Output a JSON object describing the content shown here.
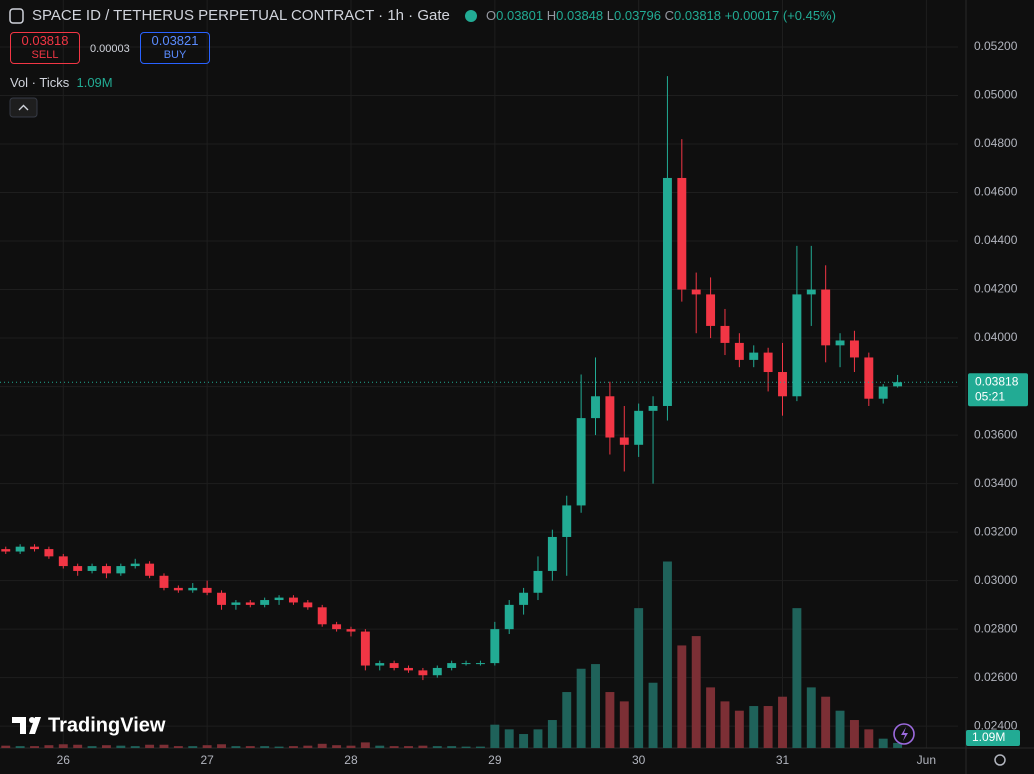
{
  "chart_data": {
    "type": "candlestick",
    "title": "SPACE ID / TETHERUS PERPETUAL CONTRACT · 1h · Gate",
    "ohlc_labels": [
      "O",
      "H",
      "L",
      "C"
    ],
    "change": "+0.00017 (+0.45%)",
    "sell": {
      "price": 0.03818,
      "label": "SELL"
    },
    "spread": 3e-05,
    "buy": {
      "price": 0.03821,
      "label": "BUY"
    },
    "volume_legend": "Vol · Ticks",
    "volume_label": "1.09M",
    "countdown": "05:21",
    "watermark": "TradingView",
    "up_color": "#22ab94",
    "down_color": "#f23645",
    "volume_up_color": "#1f625a",
    "volume_down_color": "#7c2f35",
    "grid": true,
    "x": [
      25.6,
      25.7,
      25.8,
      25.9,
      26.0,
      26.1,
      26.2,
      26.3,
      26.4,
      26.5,
      26.6,
      26.7,
      26.8,
      26.9,
      27.0,
      27.1,
      27.2,
      27.3,
      27.4,
      27.5,
      27.6,
      27.7,
      27.8,
      27.9,
      28.0,
      28.1,
      28.2,
      28.3,
      28.4,
      28.5,
      28.6,
      28.7,
      28.8,
      28.9,
      29.0,
      29.1,
      29.2,
      29.3,
      29.4,
      29.5,
      29.6,
      29.7,
      29.8,
      29.9,
      30.0,
      30.1,
      30.2,
      30.3,
      30.4,
      30.5,
      30.6,
      30.7,
      30.8,
      30.9,
      31.0,
      31.1,
      31.2,
      31.3,
      31.4,
      31.5,
      31.6,
      31.7,
      31.8
    ],
    "open": [
      0.0313,
      0.0312,
      0.0314,
      0.0313,
      0.031,
      0.0306,
      0.0304,
      0.0306,
      0.0303,
      0.0306,
      0.0307,
      0.0302,
      0.0297,
      0.0296,
      0.0297,
      0.0295,
      0.029,
      0.0291,
      0.029,
      0.0292,
      0.0293,
      0.0291,
      0.0289,
      0.0282,
      0.028,
      0.0279,
      0.0265,
      0.0266,
      0.0264,
      0.0263,
      0.0261,
      0.0264,
      0.0266,
      0.0266,
      0.0266,
      0.028,
      0.029,
      0.0295,
      0.0304,
      0.0318,
      0.0331,
      0.0367,
      0.0376,
      0.0359,
      0.0356,
      0.037,
      0.0372,
      0.0466,
      0.042,
      0.0418,
      0.0405,
      0.0398,
      0.0391,
      0.0394,
      0.0386,
      0.0376,
      0.0418,
      0.042,
      0.0397,
      0.0399,
      0.0392,
      0.0375,
      0.03801
    ],
    "high": [
      0.0314,
      0.0315,
      0.0315,
      0.0314,
      0.0311,
      0.0307,
      0.0307,
      0.0307,
      0.0307,
      0.0309,
      0.0308,
      0.0303,
      0.0298,
      0.0299,
      0.03,
      0.0296,
      0.0292,
      0.0292,
      0.0293,
      0.0294,
      0.0294,
      0.0292,
      0.029,
      0.0283,
      0.0281,
      0.028,
      0.0267,
      0.0267,
      0.0265,
      0.0264,
      0.0265,
      0.0267,
      0.0267,
      0.0267,
      0.0283,
      0.0292,
      0.0297,
      0.031,
      0.0321,
      0.0335,
      0.0385,
      0.0392,
      0.0382,
      0.0372,
      0.0373,
      0.0376,
      0.0508,
      0.0482,
      0.0427,
      0.0425,
      0.0412,
      0.0402,
      0.0397,
      0.0396,
      0.0398,
      0.0438,
      0.0438,
      0.043,
      0.0402,
      0.0403,
      0.0394,
      0.0381,
      0.03848
    ],
    "low": [
      0.0311,
      0.0311,
      0.0312,
      0.0309,
      0.0305,
      0.0302,
      0.0303,
      0.0301,
      0.0302,
      0.0305,
      0.0301,
      0.0296,
      0.0295,
      0.0295,
      0.0294,
      0.0288,
      0.0288,
      0.0289,
      0.0289,
      0.029,
      0.029,
      0.0288,
      0.0281,
      0.0279,
      0.0277,
      0.0263,
      0.0263,
      0.0263,
      0.0262,
      0.0259,
      0.026,
      0.0263,
      0.0265,
      0.0265,
      0.0265,
      0.0278,
      0.0286,
      0.0292,
      0.03,
      0.0302,
      0.0328,
      0.036,
      0.0352,
      0.0345,
      0.0351,
      0.034,
      0.0366,
      0.0415,
      0.0402,
      0.04,
      0.0393,
      0.0388,
      0.0388,
      0.0378,
      0.0368,
      0.0374,
      0.0405,
      0.039,
      0.0388,
      0.0386,
      0.0372,
      0.0373,
      0.03796
    ],
    "close": [
      0.0312,
      0.0314,
      0.0313,
      0.031,
      0.0306,
      0.0304,
      0.0306,
      0.0303,
      0.0306,
      0.0307,
      0.0302,
      0.0297,
      0.0296,
      0.0297,
      0.0295,
      0.029,
      0.0291,
      0.029,
      0.0292,
      0.0293,
      0.0291,
      0.0289,
      0.0282,
      0.028,
      0.0279,
      0.0265,
      0.0266,
      0.0264,
      0.0263,
      0.0261,
      0.0264,
      0.0266,
      0.0266,
      0.0266,
      0.028,
      0.029,
      0.0295,
      0.0304,
      0.0318,
      0.0331,
      0.0367,
      0.0376,
      0.0359,
      0.0356,
      0.037,
      0.0372,
      0.0466,
      0.042,
      0.0418,
      0.0405,
      0.0398,
      0.0391,
      0.0394,
      0.0386,
      0.0376,
      0.0418,
      0.042,
      0.0397,
      0.0399,
      0.0392,
      0.0375,
      0.038,
      0.03818
    ],
    "volume": [
      0.5,
      0.4,
      0.4,
      0.6,
      0.8,
      0.7,
      0.4,
      0.6,
      0.5,
      0.4,
      0.7,
      0.7,
      0.4,
      0.4,
      0.6,
      0.8,
      0.4,
      0.4,
      0.4,
      0.3,
      0.4,
      0.5,
      0.9,
      0.6,
      0.5,
      1.2,
      0.5,
      0.4,
      0.4,
      0.5,
      0.4,
      0.4,
      0.3,
      0.3,
      5,
      4,
      3,
      4,
      6,
      12,
      17,
      18,
      12,
      10,
      30,
      14,
      40,
      22,
      24,
      13,
      10,
      8,
      9,
      9,
      11,
      30,
      13,
      11,
      8,
      6,
      4,
      2,
      1.09
    ],
    "xlim": [
      25.56,
      32.22
    ],
    "xticks": [
      26,
      27,
      28,
      29,
      30,
      31,
      {
        "value": 32,
        "label": "Jun"
      }
    ],
    "ylim": [
      0.0231,
      0.0527
    ],
    "yticks": [
      {
        "value": 0.024,
        "label": "0.02400"
      },
      {
        "value": 0.026,
        "label": "0.02600"
      },
      {
        "value": 0.028,
        "label": "0.02800"
      },
      {
        "value": 0.03,
        "label": "0.03000"
      },
      {
        "value": 0.032,
        "label": "0.03200"
      },
      {
        "value": 0.034,
        "label": "0.03400"
      },
      {
        "value": 0.036,
        "label": "0.03600"
      },
      {
        "value": 0.038,
        "label": "0.03800"
      },
      {
        "value": 0.04,
        "label": "0.04000"
      },
      {
        "value": 0.042,
        "label": "0.04200"
      },
      {
        "value": 0.044,
        "label": "0.04400"
      },
      {
        "value": 0.046,
        "label": "0.04600"
      },
      {
        "value": 0.048,
        "label": "0.04800"
      },
      {
        "value": 0.05,
        "label": "0.05000"
      },
      {
        "value": 0.052,
        "label": "0.05200"
      }
    ],
    "y2lim": [
      0,
      154
    ]
  }
}
